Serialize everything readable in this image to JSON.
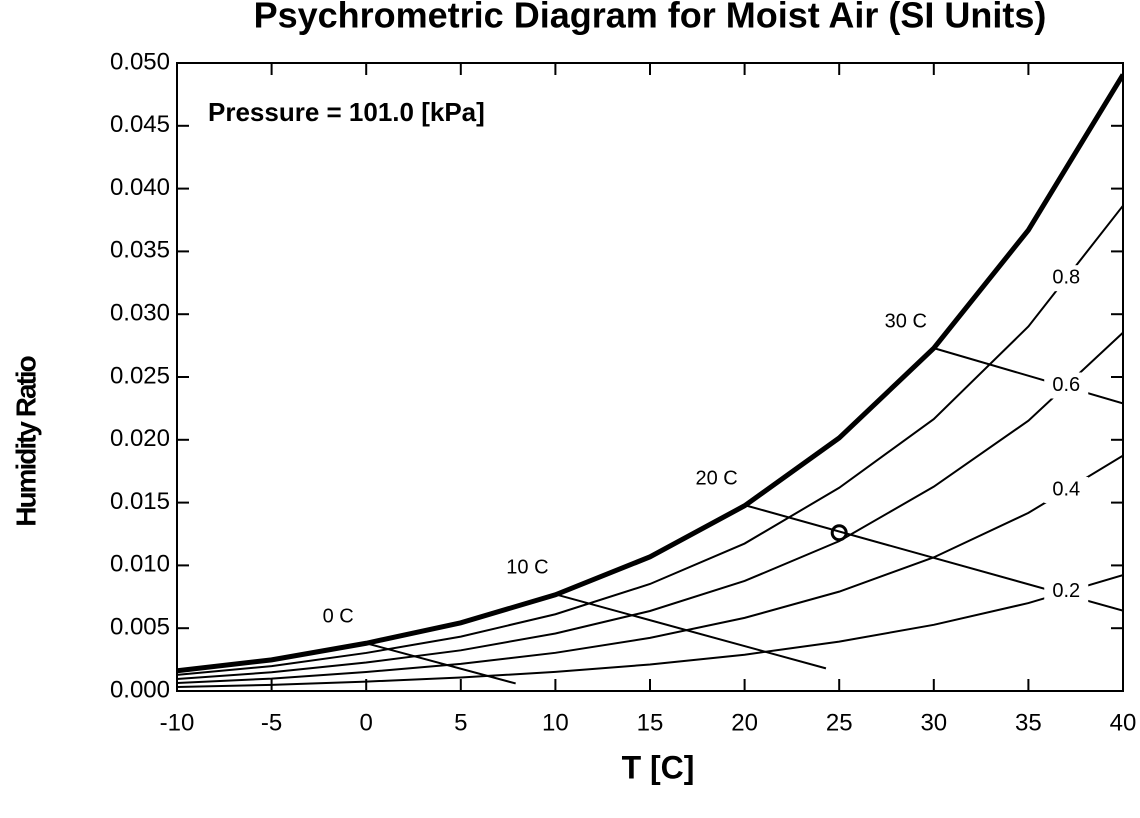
{
  "chart_data": {
    "type": "line",
    "title": "Psychrometric Diagram for Moist Air (SI Units)",
    "xlabel": "T [C]",
    "ylabel": "Humidity Ratio",
    "annotation": "Pressure = 101.0 [kPa]",
    "xlim": [
      -10,
      40
    ],
    "ylim": [
      0,
      0.05
    ],
    "xticks": [
      -10,
      -5,
      0,
      5,
      10,
      15,
      20,
      25,
      30,
      35,
      40
    ],
    "yticks": [
      {
        "value": 0,
        "label": "0.000"
      },
      0.005,
      {
        "value": 0.01,
        "label": "0.010"
      },
      0.015,
      {
        "value": 0.02,
        "label": "0.020"
      },
      0.025,
      {
        "value": 0.03,
        "label": "0.030"
      },
      0.035,
      {
        "value": 0.04,
        "label": "0.040"
      },
      0.045,
      {
        "value": 0.05,
        "label": "0.050"
      }
    ],
    "color": "#000000",
    "series": [
      {
        "kind": "saturation",
        "line_width": 5,
        "x": [
          -10,
          -5,
          0,
          5,
          10,
          15,
          20,
          25,
          30,
          35,
          40
        ],
        "values": [
          0.00161,
          0.00248,
          0.0038,
          0.00543,
          0.00766,
          0.01068,
          0.01475,
          0.02015,
          0.02729,
          0.0367,
          0.04907
        ]
      },
      {
        "kind": "relative-humidity",
        "name": "0.8",
        "line_width": 2,
        "x": [
          -10,
          -5,
          0,
          5,
          10,
          15,
          20,
          25,
          30,
          35,
          40
        ],
        "values": [
          0.00128,
          0.00198,
          0.00303,
          0.00433,
          0.00611,
          0.00852,
          0.01174,
          0.01618,
          0.02165,
          0.02902,
          0.03864
        ]
      },
      {
        "kind": "relative-humidity",
        "name": "0.6",
        "line_width": 2,
        "x": [
          -10,
          -5,
          0,
          5,
          10,
          15,
          20,
          25,
          30,
          35,
          40
        ],
        "values": [
          0.00096,
          0.00149,
          0.00227,
          0.00324,
          0.00458,
          0.00637,
          0.00876,
          0.01193,
          0.01627,
          0.02152,
          0.02853
        ]
      },
      {
        "kind": "relative-humidity",
        "name": "0.4",
        "line_width": 2,
        "x": [
          -10,
          -5,
          0,
          5,
          10,
          15,
          20,
          25,
          30,
          35,
          40
        ],
        "values": [
          0.00064,
          0.00099,
          0.00151,
          0.00216,
          0.00304,
          0.00423,
          0.00582,
          0.00791,
          0.01064,
          0.01418,
          0.01874
        ]
      },
      {
        "kind": "relative-humidity",
        "name": "0.2",
        "line_width": 2,
        "x": [
          -10,
          -5,
          0,
          5,
          10,
          15,
          20,
          25,
          30,
          35,
          40
        ],
        "values": [
          0.00032,
          0.00049,
          0.00075,
          0.00107,
          0.00152,
          0.00211,
          0.00289,
          0.00393,
          0.00527,
          0.007,
          0.00923
        ]
      },
      {
        "kind": "wet-bulb",
        "name": "0 C",
        "line_width": 2,
        "x": [
          0,
          7.9
        ],
        "values": [
          0.0038,
          0.0006
        ]
      },
      {
        "kind": "wet-bulb",
        "name": "10 C",
        "line_width": 2,
        "x": [
          10,
          24.3
        ],
        "values": [
          0.0077,
          0.0018
        ]
      },
      {
        "kind": "wet-bulb",
        "name": "20 C",
        "line_width": 2,
        "x": [
          20,
          40
        ],
        "values": [
          0.0148,
          0.0064
        ]
      },
      {
        "kind": "wet-bulb",
        "name": "30 C",
        "line_width": 2,
        "x": [
          30,
          40
        ],
        "values": [
          0.0273,
          0.0229
        ]
      }
    ],
    "point": {
      "x": 25,
      "y": 0.0126
    }
  }
}
